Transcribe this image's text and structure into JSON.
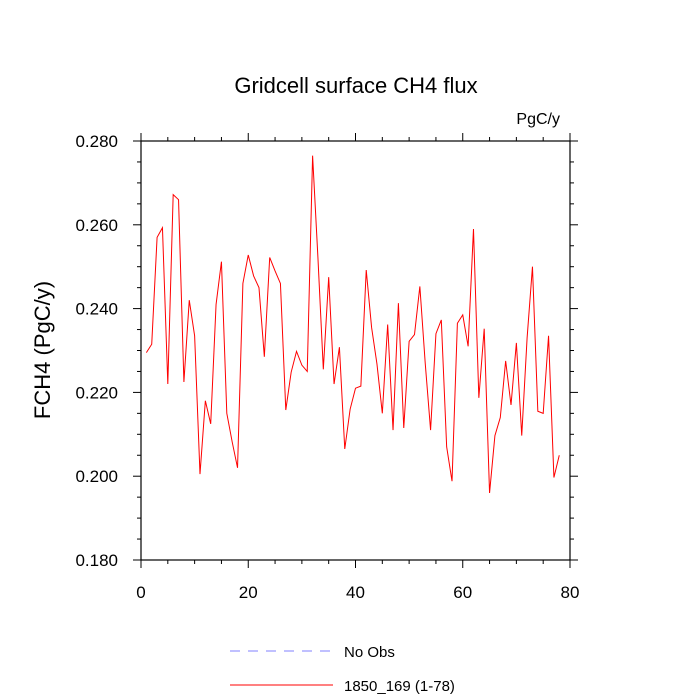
{
  "chart_data": {
    "type": "line",
    "title": "Gridcell surface CH4 flux",
    "units_label": "PgC/y",
    "ylabel": "FCH4  (PgC/y)",
    "xlabel": "",
    "xlim": [
      0,
      80
    ],
    "ylim": [
      0.18,
      0.28
    ],
    "xticks": [
      0,
      20,
      40,
      60,
      80
    ],
    "xtick_labels": [
      "0",
      "20",
      "40",
      "60",
      "80"
    ],
    "yticks": [
      0.18,
      0.2,
      0.22,
      0.24,
      0.26,
      0.28
    ],
    "ytick_labels": [
      "0.180",
      "0.200",
      "0.220",
      "0.240",
      "0.260",
      "0.280"
    ],
    "grid": false,
    "legend_position": "bottom",
    "series": [
      {
        "name": "No Obs",
        "color": "#8080ff",
        "style": "dashed",
        "x": [],
        "values": []
      },
      {
        "name": "1850_169 (1-78)",
        "color": "#ff0000",
        "style": "solid",
        "x": [
          1,
          2,
          3,
          4,
          5,
          6,
          7,
          8,
          9,
          10,
          11,
          12,
          13,
          14,
          15,
          16,
          17,
          18,
          19,
          20,
          21,
          22,
          23,
          24,
          25,
          26,
          27,
          28,
          29,
          30,
          31,
          32,
          33,
          34,
          35,
          36,
          37,
          38,
          39,
          40,
          41,
          42,
          43,
          44,
          45,
          46,
          47,
          48,
          49,
          50,
          51,
          52,
          53,
          54,
          55,
          56,
          57,
          58,
          59,
          60,
          61,
          62,
          63,
          64,
          65,
          66,
          67,
          68,
          69,
          70,
          71,
          72,
          73,
          74,
          75,
          76,
          77,
          78
        ],
        "values": [
          0.2295,
          0.2315,
          0.257,
          0.2593,
          0.222,
          0.2672,
          0.266,
          0.2225,
          0.242,
          0.2335,
          0.2005,
          0.218,
          0.2125,
          0.241,
          0.2512,
          0.215,
          0.2082,
          0.202,
          0.246,
          0.2528,
          0.2478,
          0.245,
          0.2285,
          0.2522,
          0.249,
          0.246,
          0.2158,
          0.2248,
          0.2298,
          0.2265,
          0.225,
          0.2765,
          0.252,
          0.2255,
          0.2475,
          0.222,
          0.2308,
          0.2065,
          0.216,
          0.221,
          0.2215,
          0.2492,
          0.2355,
          0.2268,
          0.215,
          0.2362,
          0.211,
          0.2413,
          0.2115,
          0.2322,
          0.2338,
          0.2453,
          0.227,
          0.211,
          0.234,
          0.2373,
          0.207,
          0.1988,
          0.2365,
          0.2385,
          0.231,
          0.259,
          0.2187,
          0.2352,
          0.196,
          0.2097,
          0.214,
          0.2275,
          0.217,
          0.2318,
          0.2097,
          0.233,
          0.25,
          0.2155,
          0.215,
          0.2335,
          0.1997,
          0.205
        ]
      }
    ]
  }
}
